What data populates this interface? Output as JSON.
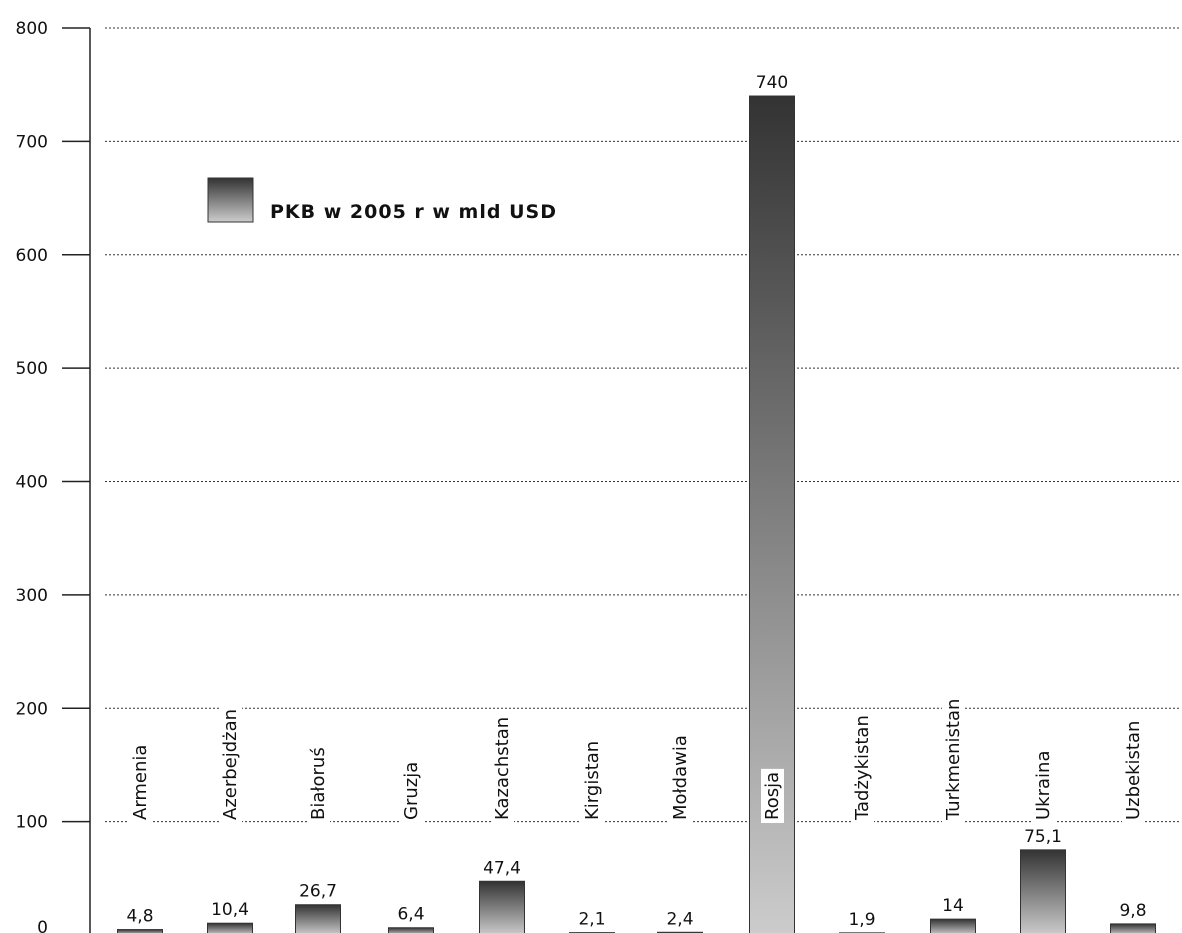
{
  "chart_data": {
    "type": "bar",
    "categories": [
      "Armenia",
      "Azerbejdżan",
      "Białoruś",
      "Gruzja",
      "Kazachstan",
      "Kirgistan",
      "Mołdawia",
      "Rosja",
      "Tadżykistan",
      "Turkmenistan",
      "Ukraina",
      "Uzbekistan"
    ],
    "series": [
      {
        "name": "PKB w 2005 r w mld USD",
        "values": [
          4.8,
          10.4,
          26.7,
          6.4,
          47.4,
          2.1,
          2.4,
          740,
          1.9,
          14,
          75.1,
          9.8
        ],
        "labels": [
          "4,8",
          "10,4",
          "26,7",
          "6,4",
          "47,4",
          "2,1",
          "2,4",
          "740",
          "1,9",
          "14",
          "75,1",
          "9,8"
        ]
      }
    ],
    "yticks": [
      "0",
      "100",
      "200",
      "300",
      "400",
      "500",
      "600",
      "700",
      "800"
    ],
    "ylim": [
      0,
      800
    ],
    "grid": true,
    "legend_position": "top-left",
    "colors": {
      "bar_dark": "#333333",
      "bar_light": "#cccccc",
      "grid": "#333333",
      "text": "#111111"
    }
  }
}
